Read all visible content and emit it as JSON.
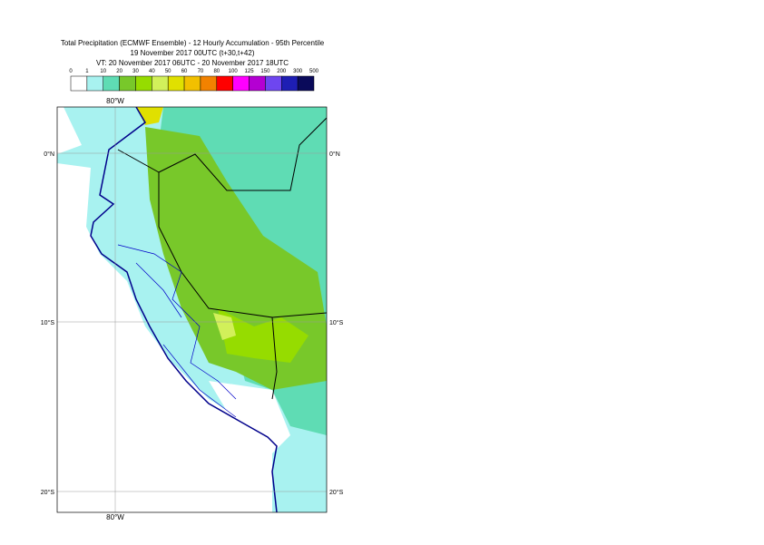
{
  "header": {
    "title": "Total Precipitation (ECMWF Ensemble) - 12 Hourly Accumulation - 95th Percentile",
    "line2": "19 November 2017 00UTC (t+30,t+42)",
    "line3": "VT: 20 November 2017 06UTC - 20 November 2017 18UTC"
  },
  "legend": {
    "labels": [
      0,
      1,
      10,
      20,
      30,
      40,
      50,
      60,
      70,
      80,
      100,
      125,
      150,
      200,
      300,
      500
    ],
    "colors": [
      "#ffffff",
      "#a8f2f0",
      "#5fdcb4",
      "#78c82a",
      "#96dc00",
      "#d2f05a",
      "#e0e000",
      "#f2c000",
      "#f28200",
      "#ff0000",
      "#ff00ff",
      "#b400d2",
      "#6e46f0",
      "#1e1eb4",
      "#0a0a5a"
    ]
  },
  "map": {
    "lon_top": "80°W",
    "lon_bottom": "80°W",
    "lat_left": [
      "0°N",
      "10°S",
      "20°S"
    ],
    "lat_right": [
      "0°N",
      "10°S",
      "20°S"
    ]
  }
}
